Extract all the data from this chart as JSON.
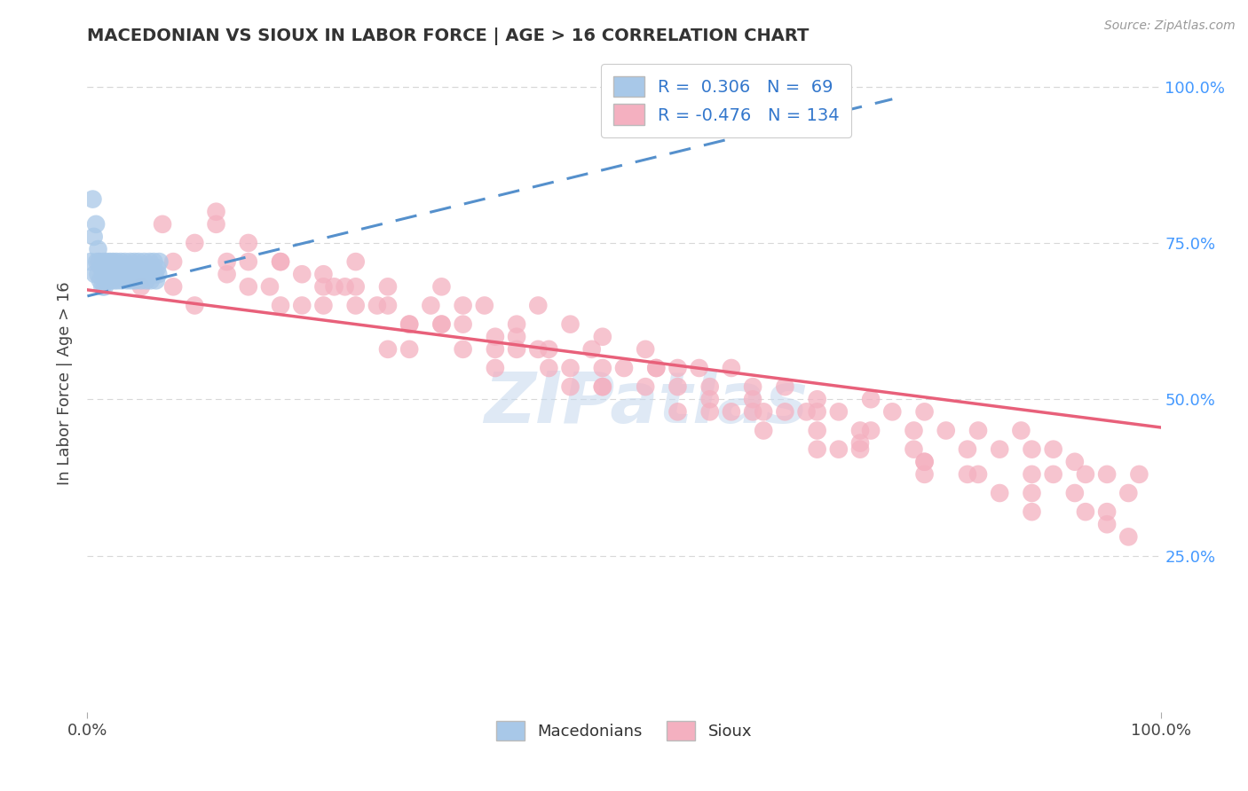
{
  "title": "MACEDONIAN VS SIOUX IN LABOR FORCE | AGE > 16 CORRELATION CHART",
  "source_text": "Source: ZipAtlas.com",
  "ylabel": "In Labor Force | Age > 16",
  "xlim": [
    0.0,
    1.0
  ],
  "ylim": [
    0.0,
    1.05
  ],
  "ytick_positions": [
    0.25,
    0.5,
    0.75,
    1.0
  ],
  "mac_color": "#a8c8e8",
  "sioux_color": "#f4b0c0",
  "mac_trend_color": "#5590cc",
  "sioux_trend_color": "#e8607a",
  "watermark": "ZIPatlas",
  "background_color": "#ffffff",
  "grid_color": "#d8d8d8",
  "right_ytick_color": "#4499ff",
  "mac_scatter_x": [
    0.003,
    0.005,
    0.006,
    0.007,
    0.008,
    0.009,
    0.01,
    0.01,
    0.011,
    0.012,
    0.013,
    0.014,
    0.015,
    0.015,
    0.016,
    0.017,
    0.018,
    0.018,
    0.019,
    0.02,
    0.021,
    0.022,
    0.022,
    0.023,
    0.024,
    0.025,
    0.025,
    0.026,
    0.027,
    0.028,
    0.029,
    0.03,
    0.031,
    0.032,
    0.033,
    0.034,
    0.035,
    0.036,
    0.037,
    0.038,
    0.039,
    0.04,
    0.041,
    0.042,
    0.043,
    0.044,
    0.045,
    0.046,
    0.047,
    0.048,
    0.049,
    0.05,
    0.051,
    0.052,
    0.053,
    0.054,
    0.055,
    0.056,
    0.057,
    0.058,
    0.059,
    0.06,
    0.061,
    0.062,
    0.063,
    0.064,
    0.065,
    0.066,
    0.067
  ],
  "mac_scatter_y": [
    0.72,
    0.82,
    0.76,
    0.7,
    0.78,
    0.72,
    0.74,
    0.7,
    0.72,
    0.69,
    0.71,
    0.68,
    0.72,
    0.7,
    0.68,
    0.7,
    0.69,
    0.72,
    0.71,
    0.7,
    0.72,
    0.69,
    0.71,
    0.7,
    0.72,
    0.69,
    0.71,
    0.7,
    0.72,
    0.69,
    0.71,
    0.7,
    0.72,
    0.69,
    0.7,
    0.71,
    0.72,
    0.7,
    0.69,
    0.71,
    0.7,
    0.72,
    0.69,
    0.71,
    0.7,
    0.72,
    0.69,
    0.7,
    0.71,
    0.72,
    0.7,
    0.69,
    0.7,
    0.71,
    0.72,
    0.7,
    0.69,
    0.71,
    0.7,
    0.72,
    0.69,
    0.7,
    0.71,
    0.72,
    0.7,
    0.69,
    0.71,
    0.7,
    0.72
  ],
  "sioux_scatter_x": [
    0.05,
    0.08,
    0.1,
    0.12,
    0.13,
    0.15,
    0.17,
    0.18,
    0.2,
    0.22,
    0.24,
    0.25,
    0.27,
    0.28,
    0.3,
    0.32,
    0.33,
    0.35,
    0.37,
    0.38,
    0.4,
    0.42,
    0.43,
    0.45,
    0.47,
    0.48,
    0.5,
    0.52,
    0.53,
    0.55,
    0.57,
    0.58,
    0.6,
    0.62,
    0.63,
    0.65,
    0.67,
    0.68,
    0.7,
    0.72,
    0.73,
    0.75,
    0.77,
    0.78,
    0.8,
    0.82,
    0.83,
    0.85,
    0.87,
    0.88,
    0.9,
    0.92,
    0.93,
    0.95,
    0.97,
    0.98,
    0.07,
    0.1,
    0.15,
    0.2,
    0.25,
    0.3,
    0.35,
    0.4,
    0.12,
    0.18,
    0.22,
    0.28,
    0.33,
    0.38,
    0.43,
    0.48,
    0.08,
    0.13,
    0.18,
    0.23,
    0.28,
    0.55,
    0.62,
    0.68,
    0.73,
    0.78,
    0.83,
    0.88,
    0.93,
    0.97,
    0.15,
    0.22,
    0.3,
    0.38,
    0.45,
    0.55,
    0.63,
    0.7,
    0.4,
    0.48,
    0.58,
    0.68,
    0.78,
    0.88,
    0.95,
    0.33,
    0.42,
    0.52,
    0.62,
    0.72,
    0.82,
    0.92,
    0.25,
    0.35,
    0.45,
    0.58,
    0.68,
    0.78,
    0.88,
    0.48,
    0.6,
    0.72,
    0.85,
    0.95,
    0.53,
    0.65,
    0.77,
    0.9
  ],
  "sioux_scatter_y": [
    0.68,
    0.72,
    0.65,
    0.78,
    0.7,
    0.75,
    0.68,
    0.72,
    0.65,
    0.7,
    0.68,
    0.72,
    0.65,
    0.68,
    0.62,
    0.65,
    0.68,
    0.62,
    0.65,
    0.6,
    0.62,
    0.65,
    0.58,
    0.62,
    0.58,
    0.6,
    0.55,
    0.58,
    0.55,
    0.52,
    0.55,
    0.52,
    0.55,
    0.52,
    0.48,
    0.52,
    0.48,
    0.5,
    0.48,
    0.45,
    0.5,
    0.48,
    0.45,
    0.48,
    0.45,
    0.42,
    0.45,
    0.42,
    0.45,
    0.42,
    0.42,
    0.4,
    0.38,
    0.38,
    0.35,
    0.38,
    0.78,
    0.75,
    0.72,
    0.7,
    0.68,
    0.62,
    0.65,
    0.58,
    0.8,
    0.72,
    0.68,
    0.65,
    0.62,
    0.58,
    0.55,
    0.52,
    0.68,
    0.72,
    0.65,
    0.68,
    0.58,
    0.55,
    0.5,
    0.48,
    0.45,
    0.4,
    0.38,
    0.35,
    0.32,
    0.28,
    0.68,
    0.65,
    0.58,
    0.55,
    0.52,
    0.48,
    0.45,
    0.42,
    0.6,
    0.55,
    0.5,
    0.45,
    0.4,
    0.38,
    0.32,
    0.62,
    0.58,
    0.52,
    0.48,
    0.43,
    0.38,
    0.35,
    0.65,
    0.58,
    0.55,
    0.48,
    0.42,
    0.38,
    0.32,
    0.52,
    0.48,
    0.42,
    0.35,
    0.3,
    0.55,
    0.48,
    0.42,
    0.38
  ],
  "mac_trend_x": [
    0.0,
    0.75
  ],
  "mac_trend_y": [
    0.665,
    0.98
  ],
  "sioux_trend_x": [
    0.0,
    1.0
  ],
  "sioux_trend_y": [
    0.675,
    0.455
  ]
}
